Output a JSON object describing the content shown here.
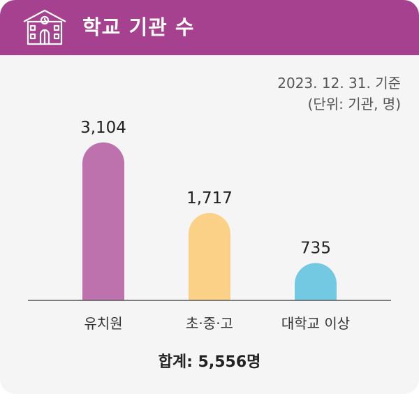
{
  "header": {
    "title": "학교 기관 수",
    "icon": "school-building-icon",
    "background_color": "#a6418f"
  },
  "meta": {
    "date": "2023. 12. 31. 기준",
    "unit": "(단위: 기관, 명)"
  },
  "chart_data": {
    "type": "bar",
    "title": "학교 기관 수",
    "categories": [
      "유치원",
      "초·중·고",
      "대학교 이상"
    ],
    "values": [
      3104,
      1717,
      735
    ],
    "value_labels": [
      "3,104",
      "1,717",
      "735"
    ],
    "colors": [
      "#be72ad",
      "#fbd087",
      "#74c9e2"
    ],
    "ylim": [
      0,
      3500
    ],
    "grid": false,
    "legend": "none"
  },
  "footer": {
    "total": "합계: 5,556명"
  }
}
